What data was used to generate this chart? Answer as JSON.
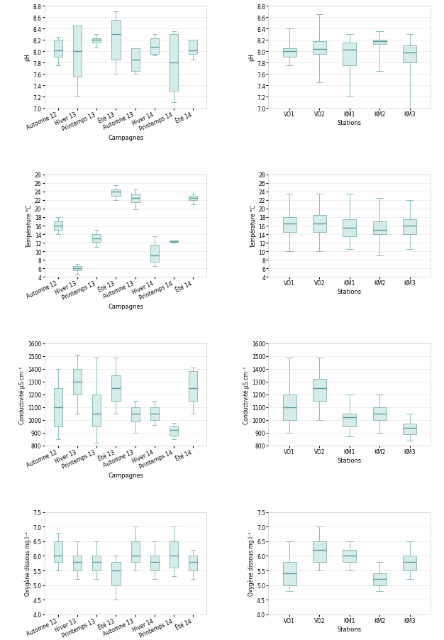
{
  "box_facecolor": "#d6ecea",
  "box_edgecolor": "#8cbcb8",
  "median_color": "#5a9e96",
  "whisker_color": "#8cbcb8",
  "background_color": "#ffffff",
  "grid_color": "#e8e8e8",
  "campagnes": [
    "Automne 12",
    "Hiver 13",
    "Printemps 13",
    "Été 13",
    "Automne 13",
    "Hiver 14",
    "Printemps 14",
    "Été 14"
  ],
  "stations": [
    "VO1",
    "VO2",
    "KM1",
    "KM2",
    "KM3"
  ],
  "pH_campagnes": {
    "ylim": [
      7.0,
      8.8
    ],
    "yticks": [
      7.0,
      7.2,
      7.4,
      7.6,
      7.8,
      8.0,
      8.2,
      8.4,
      8.6,
      8.8
    ],
    "ylabel": "pH",
    "xlabel": "Campagnes",
    "data": [
      [
        7.75,
        7.9,
        8.02,
        8.2,
        8.25
      ],
      [
        7.22,
        7.55,
        8.0,
        8.45,
        8.45
      ],
      [
        8.07,
        8.15,
        8.2,
        8.22,
        8.3
      ],
      [
        7.6,
        7.85,
        8.3,
        8.55,
        8.7
      ],
      [
        7.6,
        7.65,
        7.85,
        8.05,
        8.05
      ],
      [
        7.93,
        7.95,
        8.08,
        8.22,
        8.3
      ],
      [
        7.1,
        7.3,
        7.8,
        8.3,
        8.35
      ],
      [
        7.85,
        7.95,
        8.02,
        8.2,
        8.2
      ]
    ]
  },
  "pH_stations": {
    "ylim": [
      7.0,
      8.8
    ],
    "yticks": [
      7.0,
      7.2,
      7.4,
      7.6,
      7.8,
      8.0,
      8.2,
      8.4,
      8.6,
      8.8
    ],
    "ylabel": "pH",
    "xlabel": "Stations",
    "data": [
      [
        7.75,
        7.9,
        8.0,
        8.05,
        8.4
      ],
      [
        7.45,
        7.95,
        8.04,
        8.18,
        8.65
      ],
      [
        7.2,
        7.75,
        8.03,
        8.15,
        8.3
      ],
      [
        7.65,
        8.12,
        8.17,
        8.2,
        8.35
      ],
      [
        7.0,
        7.8,
        7.98,
        8.1,
        8.3
      ]
    ]
  },
  "temp_campagnes": {
    "ylim": [
      4,
      28
    ],
    "yticks": [
      4,
      6,
      8,
      10,
      12,
      14,
      16,
      18,
      20,
      22,
      24,
      26,
      28
    ],
    "ylabel": "Température °C",
    "xlabel": "Campagnes",
    "data": [
      [
        14.0,
        15.0,
        16.0,
        17.0,
        18.0
      ],
      [
        4.5,
        5.5,
        6.0,
        6.5,
        7.0
      ],
      [
        11.0,
        12.2,
        13.0,
        14.0,
        15.0
      ],
      [
        22.0,
        23.0,
        24.0,
        24.5,
        25.5
      ],
      [
        19.8,
        21.5,
        22.5,
        23.5,
        24.5
      ],
      [
        6.5,
        7.5,
        9.0,
        11.5,
        13.5
      ],
      [
        12.0,
        12.2,
        12.3,
        12.5,
        12.5
      ],
      [
        21.0,
        22.0,
        22.5,
        23.0,
        23.5
      ]
    ]
  },
  "temp_stations": {
    "ylim": [
      4,
      28
    ],
    "yticks": [
      4,
      6,
      8,
      10,
      12,
      14,
      16,
      18,
      20,
      22,
      24,
      26,
      28
    ],
    "ylabel": "Température °C",
    "xlabel": "Stations",
    "data": [
      [
        10.0,
        14.5,
        16.5,
        18.0,
        23.5
      ],
      [
        10.0,
        14.5,
        16.5,
        18.5,
        23.5
      ],
      [
        10.5,
        13.5,
        15.5,
        17.5,
        23.5
      ],
      [
        9.0,
        14.0,
        15.0,
        17.0,
        22.5
      ],
      [
        10.5,
        14.0,
        16.0,
        17.5,
        22.0
      ]
    ]
  },
  "cond_campagnes": {
    "ylim": [
      800,
      1600
    ],
    "yticks": [
      800,
      900,
      1000,
      1100,
      1200,
      1300,
      1400,
      1500,
      1600
    ],
    "ylabel": "Conductivité µS.cm⁻¹",
    "xlabel": "Campagnes",
    "data": [
      [
        850,
        950,
        1100,
        1250,
        1400
      ],
      [
        1050,
        1200,
        1300,
        1400,
        1510
      ],
      [
        820,
        950,
        1050,
        1200,
        1490
      ],
      [
        1050,
        1150,
        1250,
        1350,
        1490
      ],
      [
        900,
        990,
        1050,
        1100,
        1150
      ],
      [
        960,
        1000,
        1050,
        1100,
        1150
      ],
      [
        850,
        880,
        920,
        950,
        980
      ],
      [
        1050,
        1150,
        1250,
        1380,
        1410
      ]
    ]
  },
  "cond_stations": {
    "ylim": [
      800,
      1600
    ],
    "yticks": [
      800,
      900,
      1000,
      1100,
      1200,
      1300,
      1400,
      1500,
      1600
    ],
    "ylabel": "Conductivité µS.cm⁻¹",
    "xlabel": "Stations",
    "data": [
      [
        900,
        1000,
        1100,
        1200,
        1490
      ],
      [
        1000,
        1150,
        1250,
        1320,
        1490
      ],
      [
        870,
        950,
        1020,
        1050,
        1200
      ],
      [
        900,
        1000,
        1050,
        1100,
        1200
      ],
      [
        840,
        890,
        940,
        970,
        1050
      ]
    ]
  },
  "oxy_campagnes": {
    "ylim": [
      4.0,
      7.5
    ],
    "yticks": [
      4.0,
      4.5,
      5.0,
      5.5,
      6.0,
      6.5,
      7.0,
      7.5
    ],
    "ylabel": "Oxygène dissous mg.l⁻¹",
    "xlabel": "Campagnes",
    "data": [
      [
        5.5,
        5.8,
        6.0,
        6.5,
        6.8
      ],
      [
        5.2,
        5.5,
        5.8,
        6.0,
        6.5
      ],
      [
        5.2,
        5.5,
        5.8,
        6.0,
        6.5
      ],
      [
        4.5,
        5.0,
        5.5,
        5.8,
        6.0
      ],
      [
        5.5,
        5.8,
        6.0,
        6.5,
        7.0
      ],
      [
        5.2,
        5.5,
        5.8,
        6.0,
        6.5
      ],
      [
        5.3,
        5.6,
        6.0,
        6.5,
        7.0
      ],
      [
        5.2,
        5.5,
        5.8,
        6.0,
        6.2
      ]
    ]
  },
  "oxy_stations": {
    "ylim": [
      4.0,
      7.5
    ],
    "yticks": [
      4.0,
      4.5,
      5.0,
      5.5,
      6.0,
      6.5,
      7.0,
      7.5
    ],
    "ylabel": "Oxygène dissous mg.l⁻¹",
    "xlabel": "Stations",
    "data": [
      [
        4.8,
        5.0,
        5.4,
        5.8,
        6.5
      ],
      [
        5.5,
        5.8,
        6.2,
        6.5,
        7.0
      ],
      [
        5.5,
        5.8,
        6.0,
        6.2,
        6.5
      ],
      [
        4.8,
        5.0,
        5.2,
        5.4,
        5.8
      ],
      [
        5.2,
        5.5,
        5.8,
        6.0,
        6.5
      ]
    ]
  }
}
